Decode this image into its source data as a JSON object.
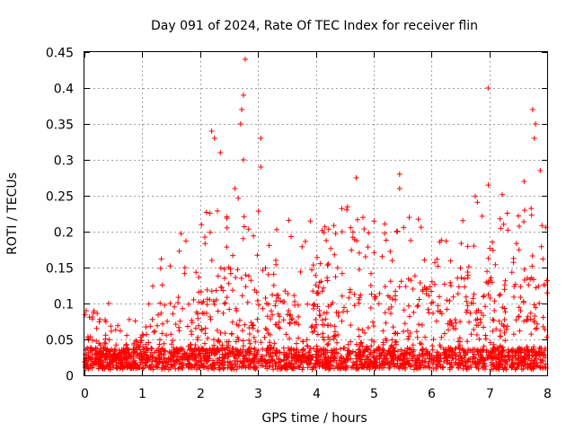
{
  "chart_data": {
    "type": "scatter",
    "title": "Day 091 of 2024, Rate Of TEC Index for receiver flin",
    "xlabel": "GPS time / hours",
    "ylabel": "ROTI / TECUs",
    "xlim": [
      0,
      8
    ],
    "ylim": [
      0,
      0.45
    ],
    "grid": true,
    "marker": "+",
    "color": "#ff0000",
    "x_ticks": [
      "0",
      "1",
      "2",
      "3",
      "4",
      "5",
      "6",
      "7",
      "8"
    ],
    "y_ticks": [
      "0",
      "0.05",
      "0.1",
      "0.15",
      "0.2",
      "0.25",
      "0.3",
      "0.35",
      "0.4",
      "0.45"
    ],
    "envelope": {
      "description": "Dense cloud of ROTI values; approximate upper envelope of the bulk of points per half hour",
      "x": [
        0,
        0.5,
        1,
        1.5,
        2,
        2.5,
        3,
        3.5,
        4,
        4.5,
        5,
        5.5,
        6,
        6.5,
        7,
        7.5,
        8
      ],
      "y": [
        0.08,
        0.05,
        0.07,
        0.18,
        0.2,
        0.24,
        0.22,
        0.2,
        0.2,
        0.23,
        0.2,
        0.2,
        0.2,
        0.22,
        0.25,
        0.24,
        0.2
      ]
    },
    "notable_points": [
      {
        "x": 0.03,
        "y": 0.09
      },
      {
        "x": 0.42,
        "y": 0.1
      },
      {
        "x": 2.2,
        "y": 0.34
      },
      {
        "x": 2.25,
        "y": 0.33
      },
      {
        "x": 2.35,
        "y": 0.31
      },
      {
        "x": 2.6,
        "y": 0.26
      },
      {
        "x": 2.7,
        "y": 0.35
      },
      {
        "x": 2.72,
        "y": 0.37
      },
      {
        "x": 2.75,
        "y": 0.39
      },
      {
        "x": 2.78,
        "y": 0.44
      },
      {
        "x": 2.75,
        "y": 0.3
      },
      {
        "x": 3.05,
        "y": 0.33
      },
      {
        "x": 3.05,
        "y": 0.29
      },
      {
        "x": 4.7,
        "y": 0.275
      },
      {
        "x": 5.45,
        "y": 0.28
      },
      {
        "x": 5.45,
        "y": 0.26
      },
      {
        "x": 6.98,
        "y": 0.4
      },
      {
        "x": 7.75,
        "y": 0.37
      },
      {
        "x": 7.8,
        "y": 0.35
      },
      {
        "x": 7.78,
        "y": 0.33
      },
      {
        "x": 7.88,
        "y": 0.285
      },
      {
        "x": 7.6,
        "y": 0.27
      }
    ]
  }
}
